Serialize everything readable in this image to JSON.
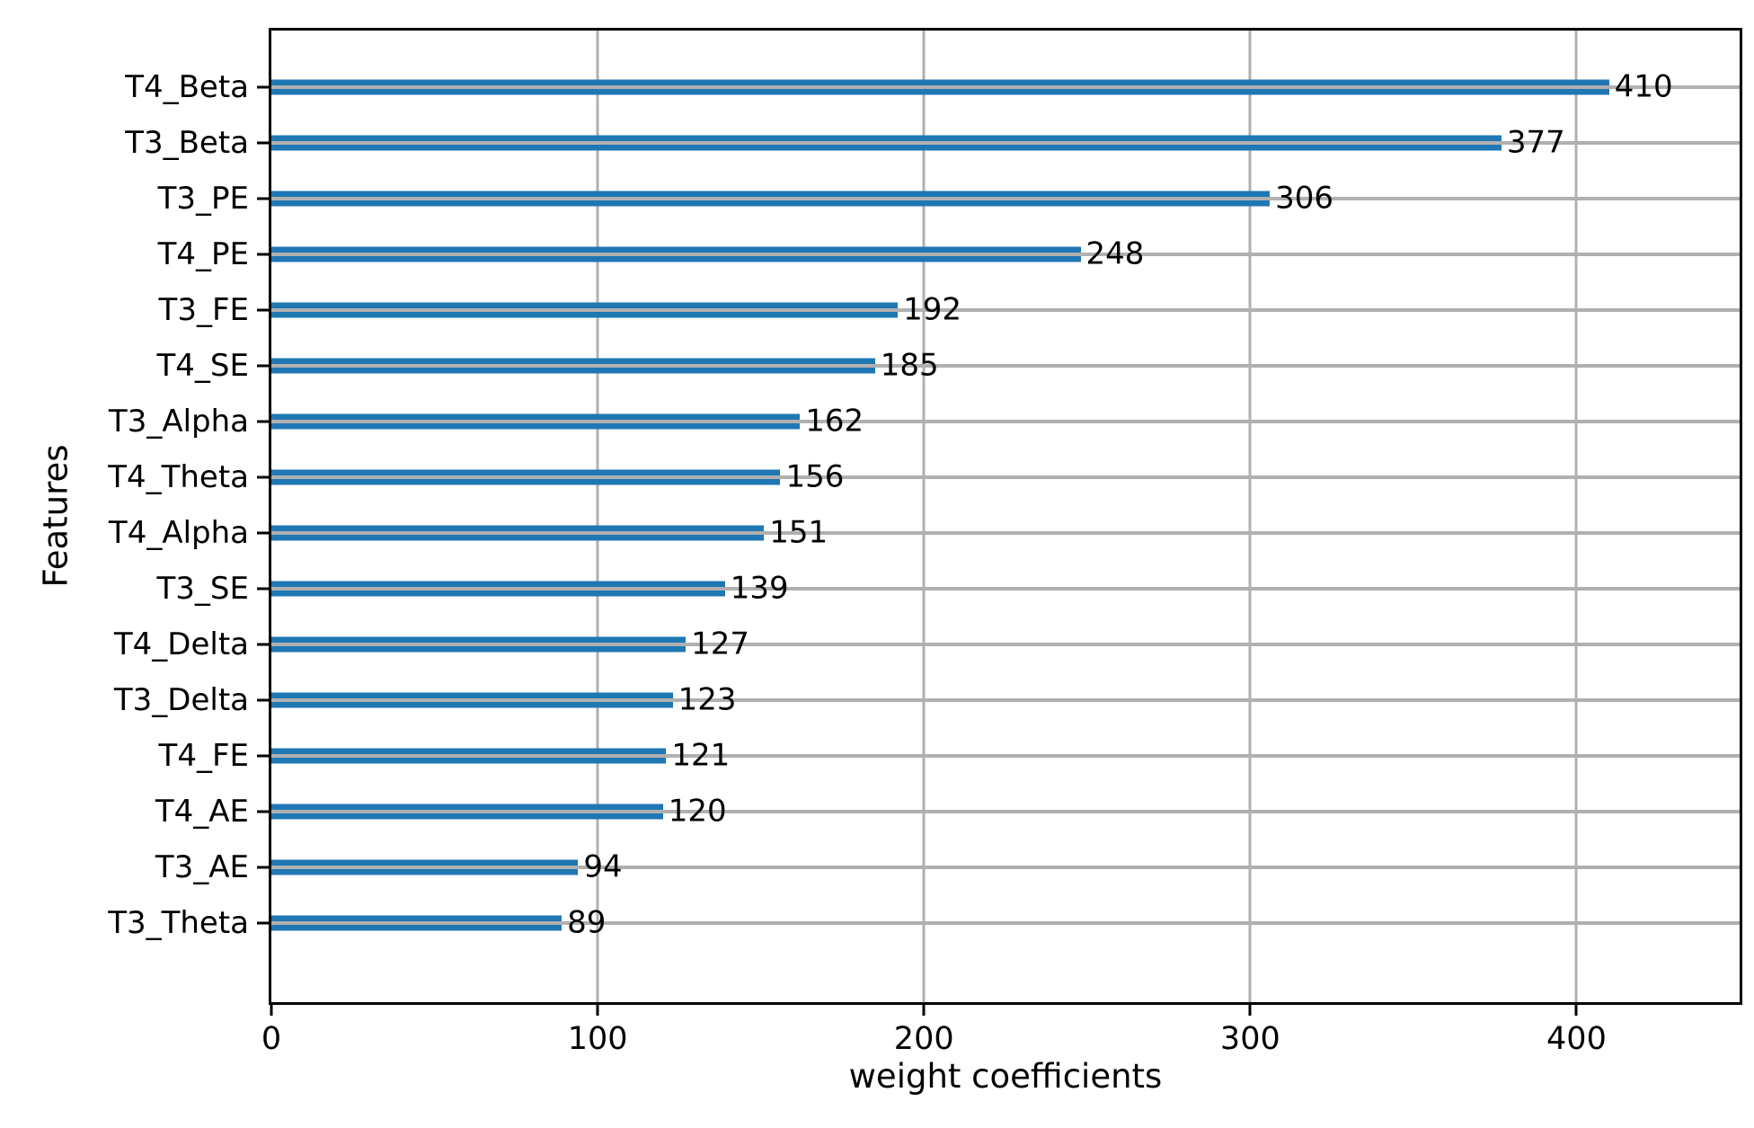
{
  "chart_data": {
    "type": "bar",
    "orientation": "horizontal",
    "title": "",
    "xlabel": "weight coefficients",
    "ylabel": "Features",
    "categories": [
      "T4_Beta",
      "T3_Beta",
      "T3_PE",
      "T4_PE",
      "T3_FE",
      "T4_SE",
      "T3_Alpha",
      "T4_Theta",
      "T4_Alpha",
      "T3_SE",
      "T4_Delta",
      "T3_Delta",
      "T4_FE",
      "T4_AE",
      "T3_AE",
      "T3_Theta"
    ],
    "values": [
      410,
      377,
      306,
      248,
      192,
      185,
      162,
      156,
      151,
      139,
      127,
      123,
      121,
      120,
      94,
      89
    ],
    "value_labels": [
      "410",
      "377",
      "306",
      "248",
      "192",
      "185",
      "162",
      "156",
      "151",
      "139",
      "127",
      "123",
      "121",
      "120",
      "94",
      "89"
    ],
    "xlim": [
      0,
      450
    ],
    "xticks": [
      0,
      100,
      200,
      300,
      400
    ],
    "xtick_labels": [
      "0",
      "100",
      "200",
      "300",
      "400"
    ],
    "grid": "both",
    "grid_vertical_at": [
      100,
      200,
      300,
      400
    ],
    "legend": "none",
    "colors": {
      "bar": "#1f77b4",
      "grid": "#b0b0b0",
      "spine": "#000000",
      "text": "#000000",
      "background": "#ffffff"
    }
  }
}
